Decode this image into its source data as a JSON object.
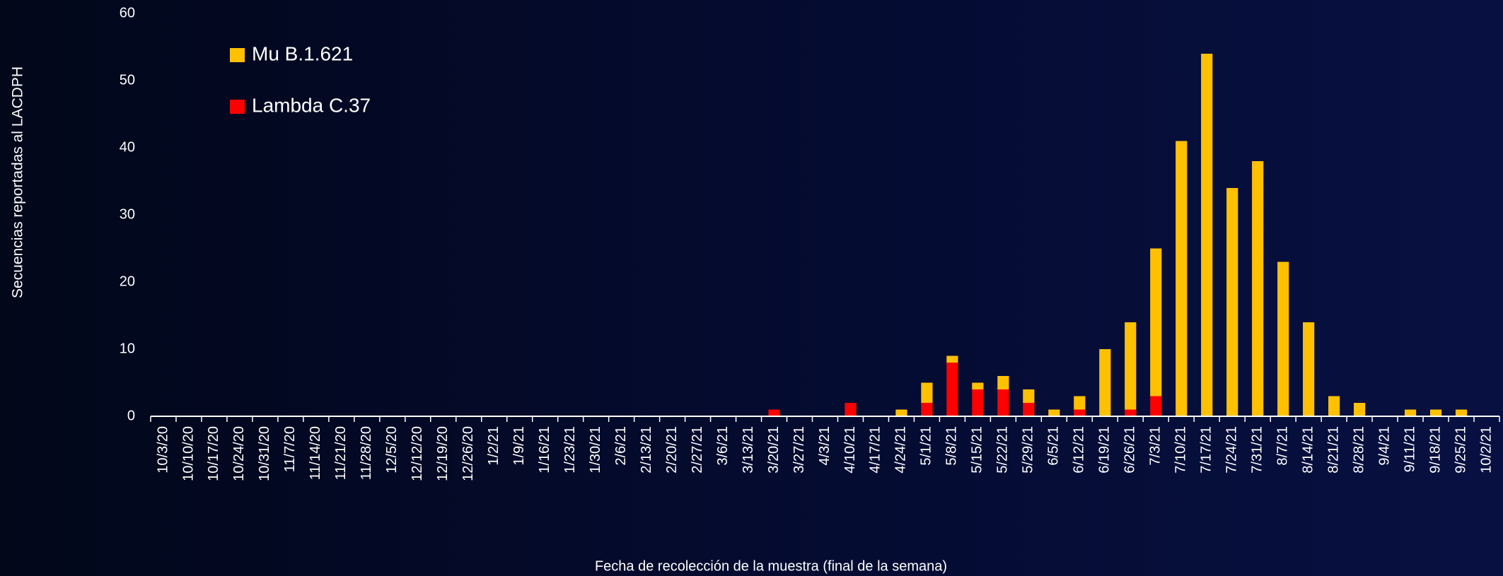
{
  "chart_data": {
    "type": "stacked_bar",
    "y_label": "Secuencias reportadas al LACDPH",
    "x_label": "Fecha de recolección de la muestra (final de la semana)",
    "categories": [
      "10/3/20",
      "10/10/20",
      "10/17/20",
      "10/24/20",
      "10/31/20",
      "11/7/20",
      "11/14/20",
      "11/21/20",
      "11/28/20",
      "12/5/20",
      "12/12/20",
      "12/19/20",
      "12/26/20",
      "1/2/21",
      "1/9/21",
      "1/16/21",
      "1/23/21",
      "1/30/21",
      "2/6/21",
      "2/13/21",
      "2/20/21",
      "2/27/21",
      "3/6/21",
      "3/13/21",
      "3/20/21",
      "3/27/21",
      "4/3/21",
      "4/10/21",
      "4/17/21",
      "4/24/21",
      "5/1/21",
      "5/8/21",
      "5/15/21",
      "5/22/21",
      "5/29/21",
      "6/5/21",
      "6/12/21",
      "6/19/21",
      "6/26/21",
      "7/3/21",
      "7/10/21",
      "7/17/21",
      "7/24/21",
      "7/31/21",
      "8/7/21",
      "8/14/21",
      "8/21/21",
      "8/28/21",
      "9/4/21",
      "9/11/21",
      "9/18/21",
      "9/25/21",
      "10/2/21"
    ],
    "series": [
      {
        "name": "Mu B.1.621",
        "color": "#ffc000",
        "values": [
          0,
          0,
          0,
          0,
          0,
          0,
          0,
          0,
          0,
          0,
          0,
          0,
          0,
          0,
          0,
          0,
          0,
          0,
          0,
          0,
          0,
          0,
          0,
          0,
          0,
          0,
          0,
          0,
          0,
          1,
          3,
          1,
          1,
          2,
          2,
          1,
          2,
          10,
          13,
          22,
          41,
          54,
          34,
          38,
          23,
          14,
          3,
          2,
          0,
          1,
          1,
          1,
          0
        ]
      },
      {
        "name": "Lambda C.37",
        "color": "#ff0000",
        "values": [
          0,
          0,
          0,
          0,
          0,
          0,
          0,
          0,
          0,
          0,
          0,
          0,
          0,
          0,
          0,
          0,
          0,
          0,
          0,
          0,
          0,
          0,
          0,
          0,
          1,
          0,
          0,
          2,
          0,
          0,
          2,
          8,
          4,
          4,
          2,
          0,
          1,
          0,
          1,
          3,
          0,
          0,
          0,
          0,
          0,
          0,
          0,
          0,
          0,
          0,
          0,
          0,
          0
        ]
      }
    ],
    "ylim": [
      0,
      60
    ],
    "yticks": [
      0,
      10,
      20,
      30,
      40,
      50,
      60
    ],
    "grid": false,
    "legend": "upper left"
  }
}
